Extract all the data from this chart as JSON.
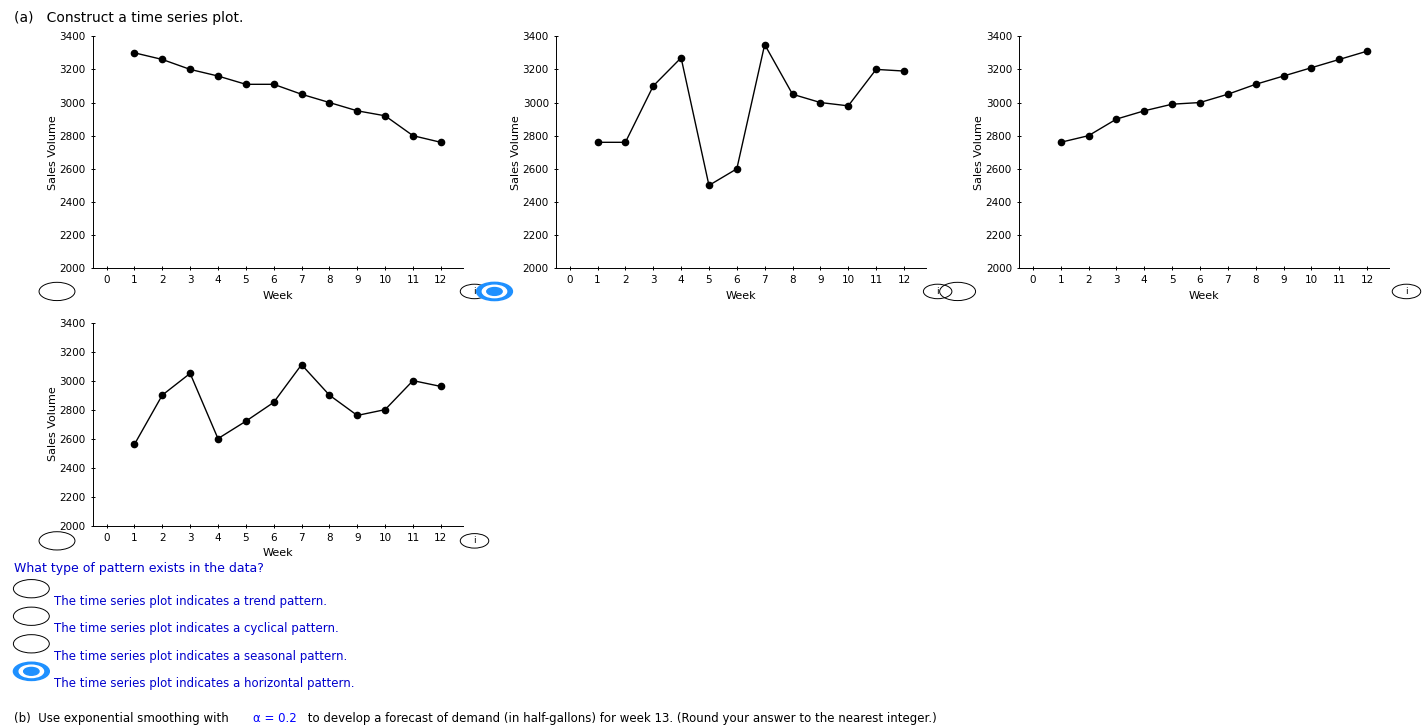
{
  "weeks": [
    1,
    2,
    3,
    4,
    5,
    6,
    7,
    8,
    9,
    10,
    11,
    12
  ],
  "plot1_values": [
    3300,
    3260,
    3200,
    3160,
    3110,
    3110,
    3050,
    3000,
    2950,
    2920,
    2800,
    2760
  ],
  "plot2_values": [
    2760,
    2760,
    3100,
    3270,
    2500,
    2600,
    3350,
    3050,
    3000,
    2980,
    3200,
    3190
  ],
  "plot3_values": [
    2760,
    2800,
    2900,
    2950,
    2990,
    3000,
    3050,
    3110,
    3160,
    3210,
    3260,
    3310
  ],
  "plot4_values": [
    2560,
    2900,
    3050,
    2600,
    2720,
    2850,
    3110,
    2900,
    2760,
    2800,
    3000,
    2960
  ],
  "ylim": [
    2000,
    3400
  ],
  "yticks": [
    2000,
    2200,
    2400,
    2600,
    2800,
    3000,
    3200,
    3400
  ],
  "xticks": [
    0,
    1,
    2,
    3,
    4,
    5,
    6,
    7,
    8,
    9,
    10,
    11,
    12
  ],
  "xlabel": "Week",
  "ylabel": "Sales Volume",
  "title_main": "(a)   Construct a time series plot.",
  "question_text": "What type of pattern exists in the data?",
  "options": [
    "The time series plot indicates a trend pattern.",
    "The time series plot indicates a cyclical pattern.",
    "The time series plot indicates a seasonal pattern.",
    "The time series plot indicates a horizontal pattern."
  ],
  "selected_option": 3,
  "alpha_color": "#0000ff",
  "question_color": "#0000cd",
  "line_color": "#000000",
  "marker_color": "#000000",
  "bg_color": "#ffffff"
}
